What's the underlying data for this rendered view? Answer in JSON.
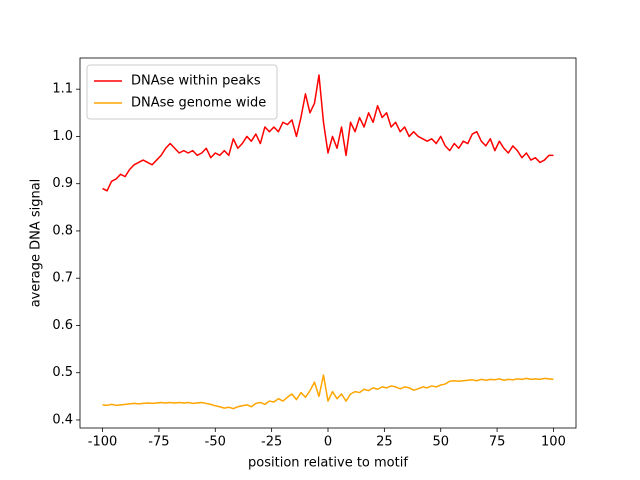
{
  "chart_data": {
    "type": "line",
    "xlabel": "position relative to motif",
    "ylabel": "average DNA signal",
    "x": [
      -100,
      -98,
      -96,
      -94,
      -92,
      -90,
      -88,
      -86,
      -84,
      -82,
      -80,
      -78,
      -76,
      -74,
      -72,
      -70,
      -68,
      -66,
      -64,
      -62,
      -60,
      -58,
      -56,
      -54,
      -52,
      -50,
      -48,
      -46,
      -44,
      -42,
      -40,
      -38,
      -36,
      -34,
      -32,
      -30,
      -28,
      -26,
      -24,
      -22,
      -20,
      -18,
      -16,
      -14,
      -12,
      -10,
      -8,
      -6,
      -4,
      -2,
      0,
      2,
      4,
      6,
      8,
      10,
      12,
      14,
      16,
      18,
      20,
      22,
      24,
      26,
      28,
      30,
      32,
      34,
      36,
      38,
      40,
      42,
      44,
      46,
      48,
      50,
      52,
      54,
      56,
      58,
      60,
      62,
      64,
      66,
      68,
      70,
      72,
      74,
      76,
      78,
      80,
      82,
      84,
      86,
      88,
      90,
      92,
      94,
      96,
      98,
      100
    ],
    "series": [
      {
        "name": "DNAse within peaks",
        "color": "#ff0000",
        "values": [
          0.89,
          0.885,
          0.905,
          0.91,
          0.92,
          0.915,
          0.93,
          0.94,
          0.945,
          0.95,
          0.945,
          0.94,
          0.95,
          0.96,
          0.975,
          0.985,
          0.975,
          0.965,
          0.97,
          0.965,
          0.97,
          0.96,
          0.965,
          0.975,
          0.955,
          0.965,
          0.96,
          0.97,
          0.96,
          0.995,
          0.975,
          0.985,
          1.0,
          0.99,
          1.005,
          0.985,
          1.02,
          1.01,
          1.02,
          1.01,
          1.03,
          1.025,
          1.035,
          1.0,
          1.04,
          1.09,
          1.05,
          1.07,
          1.13,
          1.03,
          0.965,
          1.0,
          0.975,
          1.02,
          0.96,
          1.03,
          1.01,
          1.04,
          1.02,
          1.05,
          1.03,
          1.065,
          1.04,
          1.05,
          1.02,
          1.03,
          1.01,
          1.02,
          1.0,
          1.01,
          1.0,
          0.995,
          0.99,
          0.995,
          0.985,
          1.0,
          0.98,
          0.97,
          0.985,
          0.975,
          0.99,
          0.985,
          1.005,
          1.01,
          0.99,
          0.98,
          0.995,
          0.97,
          0.99,
          0.975,
          0.965,
          0.98,
          0.97,
          0.955,
          0.965,
          0.95,
          0.955,
          0.945,
          0.95,
          0.96,
          0.96
        ]
      },
      {
        "name": "DNAse genome wide",
        "color": "#ffa500",
        "values": [
          0.432,
          0.431,
          0.433,
          0.431,
          0.432,
          0.433,
          0.434,
          0.435,
          0.434,
          0.435,
          0.436,
          0.435,
          0.436,
          0.437,
          0.436,
          0.437,
          0.436,
          0.437,
          0.436,
          0.437,
          0.435,
          0.436,
          0.437,
          0.435,
          0.433,
          0.43,
          0.428,
          0.425,
          0.427,
          0.424,
          0.428,
          0.43,
          0.432,
          0.428,
          0.435,
          0.437,
          0.433,
          0.44,
          0.438,
          0.445,
          0.44,
          0.448,
          0.455,
          0.443,
          0.458,
          0.448,
          0.462,
          0.48,
          0.45,
          0.495,
          0.44,
          0.46,
          0.445,
          0.455,
          0.44,
          0.455,
          0.46,
          0.458,
          0.465,
          0.462,
          0.468,
          0.465,
          0.47,
          0.468,
          0.472,
          0.47,
          0.466,
          0.47,
          0.468,
          0.463,
          0.466,
          0.47,
          0.468,
          0.472,
          0.47,
          0.474,
          0.476,
          0.482,
          0.483,
          0.482,
          0.483,
          0.484,
          0.485,
          0.483,
          0.486,
          0.484,
          0.486,
          0.485,
          0.487,
          0.484,
          0.486,
          0.485,
          0.487,
          0.486,
          0.488,
          0.486,
          0.487,
          0.486,
          0.488,
          0.487,
          0.486
        ]
      }
    ],
    "xlim": [
      -110,
      110
    ],
    "ylim": [
      0.383,
      1.166
    ],
    "xticks": [
      -100,
      -75,
      -50,
      -25,
      0,
      25,
      50,
      75,
      100
    ],
    "yticks": [
      0.4,
      0.5,
      0.6,
      0.7,
      0.8,
      0.9,
      {
        "value": 1,
        "label": "1.0"
      },
      1.1
    ],
    "legend": "upper left"
  }
}
